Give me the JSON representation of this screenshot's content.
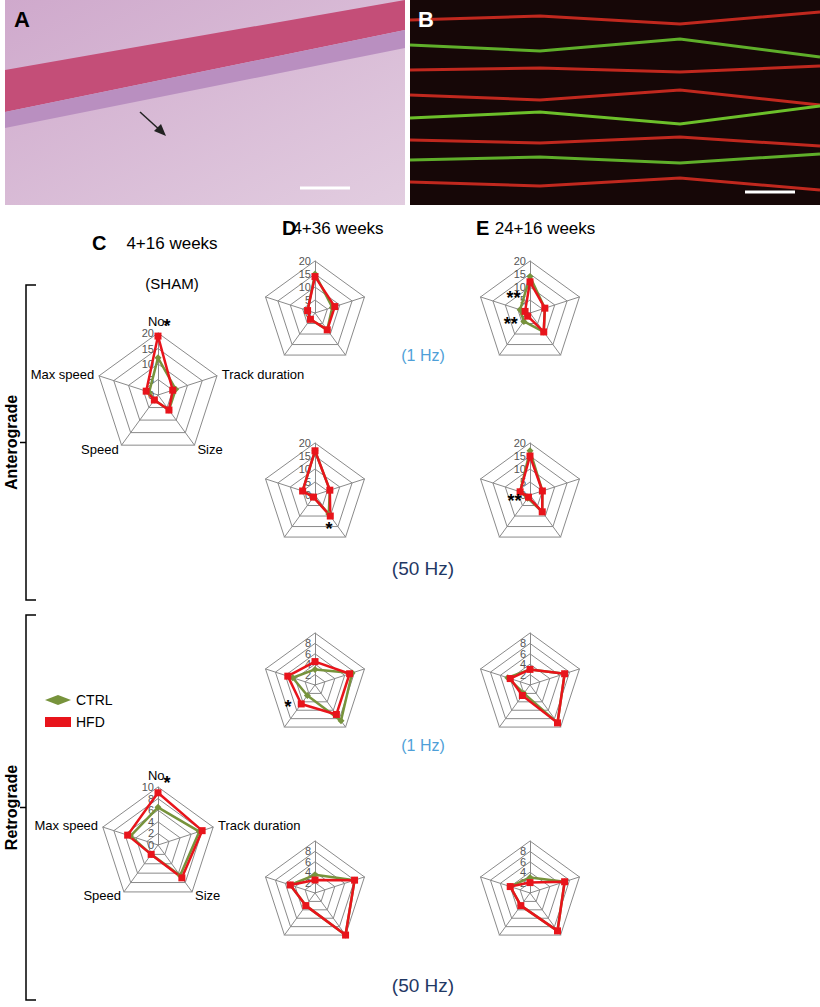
{
  "panels": [
    {
      "label": "A"
    },
    {
      "label": "B"
    }
  ],
  "columns": [
    {
      "panel": "C",
      "title": "4+16 weeks",
      "subtitle": "(SHAM)"
    },
    {
      "panel": "D",
      "title": "4+36 weeks"
    },
    {
      "panel": "E",
      "title": "24+16 weeks"
    }
  ],
  "rows": [
    "Anterograde",
    "Retrograde"
  ],
  "frequencies": [
    {
      "label": "(1 Hz)",
      "color": "#4f9fd8"
    },
    {
      "label": "(50 Hz)",
      "color": "#1f3864"
    }
  ],
  "chart_data": [
    {
      "type": "radar",
      "panel": "C",
      "direction": "Anterograde",
      "frequency": null,
      "categories": [
        "No.",
        "Track duration",
        "Size",
        "Speed",
        "Max speed"
      ],
      "ylim": [
        0,
        20
      ],
      "yticks": [
        0,
        5,
        10,
        15,
        20
      ],
      "legend": "left",
      "series": [
        {
          "name": "CTRL",
          "color": "#77933c",
          "marker": "diamond",
          "values": [
            12,
            6,
            6,
            2,
            3
          ]
        },
        {
          "name": "HFD",
          "color": "#e8141b",
          "marker": "square",
          "values": [
            19,
            5,
            6,
            2,
            4
          ]
        }
      ],
      "annotations": [
        {
          "category_index": 0,
          "text": "*"
        }
      ]
    },
    {
      "type": "radar",
      "panel": "C",
      "direction": "Retrograde",
      "frequency": null,
      "categories": [
        "No.",
        "Track duration",
        "Size",
        "Speed",
        "Max speed"
      ],
      "ylim": [
        0,
        10
      ],
      "yticks": [
        0,
        2,
        4,
        6,
        8,
        10
      ],
      "series": [
        {
          "name": "CTRL",
          "color": "#77933c",
          "marker": "diamond",
          "values": [
            6.5,
            7.5,
            6.5,
            2,
            5
          ]
        },
        {
          "name": "HFD",
          "color": "#e8141b",
          "marker": "square",
          "values": [
            9,
            8,
            7,
            2,
            5.5
          ]
        }
      ],
      "annotations": [
        {
          "category_index": 0,
          "text": "*"
        }
      ]
    },
    {
      "type": "radar",
      "panel": "D",
      "direction": "Anterograde",
      "frequency": "(1 Hz)",
      "categories": [
        null,
        null,
        null,
        null,
        null
      ],
      "ylim": [
        0,
        20
      ],
      "yticks": [
        0,
        5,
        10,
        15,
        20
      ],
      "series": [
        {
          "name": "CTRL",
          "color": "#77933c",
          "marker": "diamond",
          "values": [
            15,
            7,
            8,
            3,
            3
          ]
        },
        {
          "name": "HFD",
          "color": "#e8141b",
          "marker": "square",
          "values": [
            14,
            8,
            8,
            3,
            3
          ]
        }
      ],
      "annotations": []
    },
    {
      "type": "radar",
      "panel": "D",
      "direction": "Anterograde",
      "frequency": "(50 Hz)",
      "categories": [
        null,
        null,
        null,
        null,
        null
      ],
      "ylim": [
        0,
        20
      ],
      "yticks": [
        0,
        5,
        10,
        15,
        20
      ],
      "series": [
        {
          "name": "CTRL",
          "color": "#77933c",
          "marker": "diamond",
          "values": [
            17,
            6,
            9,
            1,
            5
          ]
        },
        {
          "name": "HFD",
          "color": "#e8141b",
          "marker": "square",
          "values": [
            17,
            6,
            10,
            1,
            5
          ]
        }
      ],
      "annotations": [
        {
          "category_index": 2,
          "text": "*"
        }
      ]
    },
    {
      "type": "radar",
      "panel": "D",
      "direction": "Retrograde",
      "frequency": "(1 Hz)",
      "categories": [
        null,
        null,
        null,
        null,
        null
      ],
      "ylim": [
        0,
        10
      ],
      "yticks": [
        0,
        2,
        4,
        6,
        8,
        10
      ],
      "series": [
        {
          "name": "CTRL",
          "color": "#77933c",
          "marker": "diamond",
          "values": [
            3,
            7.5,
            8.5,
            2.5,
            4.5
          ]
        },
        {
          "name": "HFD",
          "color": "#e8141b",
          "marker": "square",
          "values": [
            4.5,
            7,
            7,
            4.5,
            5.5
          ]
        }
      ],
      "annotations": [
        {
          "category_index": 3,
          "text": "*"
        }
      ]
    },
    {
      "type": "radar",
      "panel": "D",
      "direction": "Retrograde",
      "frequency": "(50 Hz)",
      "categories": [
        null,
        null,
        null,
        null,
        null
      ],
      "ylim": [
        0,
        10
      ],
      "yticks": [
        0,
        2,
        4,
        6,
        8,
        10
      ],
      "series": [
        {
          "name": "CTRL",
          "color": "#77933c",
          "marker": "diamond",
          "values": [
            3.5,
            8,
            10,
            3,
            5
          ]
        },
        {
          "name": "HFD",
          "color": "#e8141b",
          "marker": "square",
          "values": [
            2.5,
            8,
            10,
            3,
            5
          ]
        }
      ],
      "annotations": []
    },
    {
      "type": "radar",
      "panel": "E",
      "direction": "Anterograde",
      "frequency": "(1 Hz)",
      "categories": [
        null,
        null,
        null,
        null,
        null
      ],
      "ylim": [
        0,
        20
      ],
      "yticks": [
        0,
        5,
        10,
        15,
        20
      ],
      "series": [
        {
          "name": "CTRL",
          "color": "#77933c",
          "marker": "diamond",
          "values": [
            14,
            6,
            9,
            4,
            4
          ]
        },
        {
          "name": "HFD",
          "color": "#e8141b",
          "marker": "square",
          "values": [
            12,
            6,
            9,
            1.5,
            2
          ]
        }
      ],
      "annotations": [
        {
          "category_index": 4,
          "text": "**"
        },
        {
          "category_index": 3,
          "text": "**"
        }
      ]
    },
    {
      "type": "radar",
      "panel": "E",
      "direction": "Anterograde",
      "frequency": "(50 Hz)",
      "categories": [
        null,
        null,
        null,
        null,
        null
      ],
      "ylim": [
        0,
        20
      ],
      "yticks": [
        0,
        5,
        10,
        15,
        20
      ],
      "series": [
        {
          "name": "CTRL",
          "color": "#77933c",
          "marker": "diamond",
          "values": [
            17,
            5,
            8,
            1.5,
            4
          ]
        },
        {
          "name": "HFD",
          "color": "#e8141b",
          "marker": "square",
          "values": [
            15,
            5,
            8,
            1,
            4
          ]
        }
      ],
      "annotations": [
        {
          "category_index": 3,
          "text": "**"
        }
      ]
    },
    {
      "type": "radar",
      "panel": "E",
      "direction": "Retrograde",
      "frequency": "(1 Hz)",
      "categories": [
        null,
        null,
        null,
        null,
        null
      ],
      "ylim": [
        0,
        10
      ],
      "yticks": [
        0,
        2,
        4,
        6,
        8,
        10
      ],
      "series": [
        {
          "name": "CTRL",
          "color": "#77933c",
          "marker": "diamond",
          "values": [
            3,
            7,
            9,
            2,
            4.5
          ]
        },
        {
          "name": "HFD",
          "color": "#e8141b",
          "marker": "square",
          "values": [
            3,
            7,
            9,
            2.5,
            4
          ]
        }
      ],
      "annotations": []
    },
    {
      "type": "radar",
      "panel": "E",
      "direction": "Retrograde",
      "frequency": "(50 Hz)",
      "categories": [
        null,
        null,
        null,
        null,
        null
      ],
      "ylim": [
        0,
        10
      ],
      "yticks": [
        0,
        2,
        4,
        6,
        8,
        10
      ],
      "series": [
        {
          "name": "CTRL",
          "color": "#77933c",
          "marker": "diamond",
          "values": [
            3,
            7,
            9,
            3,
            4
          ]
        },
        {
          "name": "HFD",
          "color": "#e8141b",
          "marker": "square",
          "values": [
            2,
            7,
            9,
            3,
            4
          ]
        }
      ],
      "annotations": []
    }
  ]
}
